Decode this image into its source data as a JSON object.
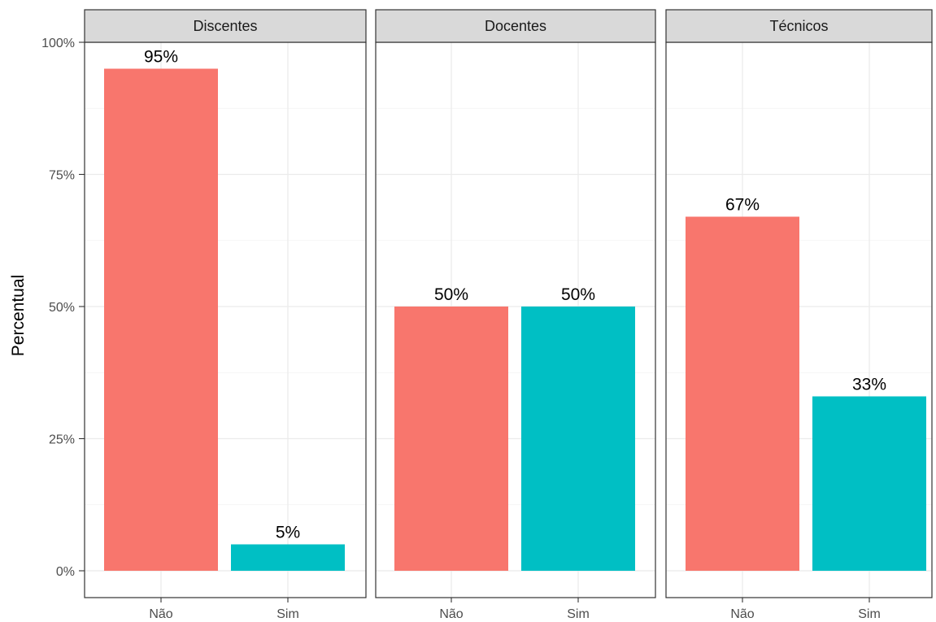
{
  "chart_data": {
    "type": "bar",
    "ylabel": "Percentual",
    "xlabel": "",
    "ylim": [
      0,
      100
    ],
    "y_ticks": [
      0,
      25,
      50,
      75,
      100
    ],
    "y_tick_labels": [
      "0%",
      "25%",
      "50%",
      "75%",
      "100%"
    ],
    "categories": [
      "Não",
      "Sim"
    ],
    "category_colors": [
      "#F8766D",
      "#00BFC4"
    ],
    "grid": true,
    "facets": [
      {
        "name": "Discentes",
        "values": [
          95,
          5
        ],
        "labels": [
          "95%",
          "5%"
        ]
      },
      {
        "name": "Docentes",
        "values": [
          50,
          50
        ],
        "labels": [
          "50%",
          "50%"
        ]
      },
      {
        "name": "Técnicos",
        "values": [
          67,
          33
        ],
        "labels": [
          "67%",
          "33%"
        ]
      }
    ]
  }
}
